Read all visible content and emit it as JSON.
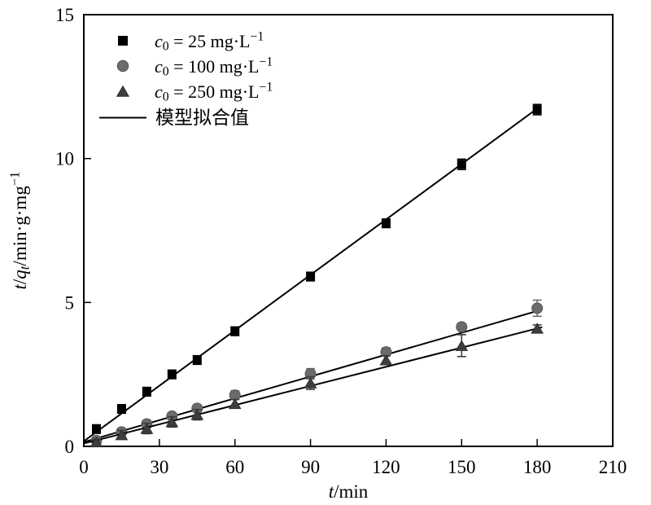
{
  "figure": {
    "background": "#ffffff",
    "frame_color": "#000000"
  },
  "chart_data": {
    "type": "scatter",
    "title": "",
    "xlabel": "t/min",
    "xlabel_parts": [
      {
        "t": "t",
        "style": "italic"
      },
      {
        "t": "/min",
        "style": "normal"
      }
    ],
    "ylabel": "t/qt/min·g·mg−1",
    "ylabel_parts": [
      {
        "t": "t",
        "style": "italic"
      },
      {
        "t": "/",
        "style": "normal"
      },
      {
        "t": "q",
        "style": "italic"
      },
      {
        "t": "t",
        "style": "italic-sub"
      },
      {
        "t": "/min·g·mg",
        "style": "normal"
      },
      {
        "t": "−1",
        "style": "sup"
      }
    ],
    "xlim": [
      0,
      210
    ],
    "ylim": [
      0,
      15
    ],
    "xticks": [
      0,
      30,
      60,
      90,
      120,
      150,
      180,
      210
    ],
    "yticks": [
      0,
      5,
      10,
      15
    ],
    "grid": false,
    "legend_position": "top-left",
    "x": [
      5,
      15,
      25,
      35,
      45,
      60,
      90,
      120,
      150,
      180
    ],
    "series": [
      {
        "name": "c0 = 25 mg·L−1",
        "label_parts": [
          {
            "t": "c",
            "style": "italic"
          },
          {
            "t": "0",
            "style": "sub"
          },
          {
            "t": " = 25 mg·L",
            "style": "normal"
          },
          {
            "t": "−1",
            "style": "sup"
          }
        ],
        "marker": "square",
        "color": "#000000",
        "values": [
          0.6,
          1.3,
          1.9,
          2.5,
          3.0,
          4.0,
          5.9,
          7.75,
          9.8,
          11.7
        ],
        "errors": [
          0.15,
          0.15,
          0.15,
          0.15,
          0.15,
          0.15,
          0.15,
          0.15,
          0.18,
          0.18
        ],
        "fit": {
          "slope": 0.0642,
          "intercept": 0.18,
          "t_start": 0,
          "t_end": 180.7
        }
      },
      {
        "name": "c0 = 100 mg·L−1",
        "label_parts": [
          {
            "t": "c",
            "style": "italic"
          },
          {
            "t": "0",
            "style": "sub"
          },
          {
            "t": " = 100 mg·L",
            "style": "normal"
          },
          {
            "t": "−1",
            "style": "sup"
          }
        ],
        "marker": "circle",
        "color": "#6b6b6b",
        "edge_color": "#555555",
        "values": [
          0.2,
          0.5,
          0.78,
          1.05,
          1.32,
          1.78,
          2.52,
          3.28,
          4.15,
          4.8
        ],
        "errors": [
          0.1,
          0.12,
          0.12,
          0.12,
          0.12,
          0.15,
          0.18,
          0.14,
          0.12,
          0.28
        ],
        "fit": {
          "slope": 0.0253,
          "intercept": 0.15,
          "t_start": 0,
          "t_end": 182
        }
      },
      {
        "name": "c0 = 250 mg·L−1",
        "label_parts": [
          {
            "t": "c",
            "style": "italic"
          },
          {
            "t": "0",
            "style": "sub"
          },
          {
            "t": " = 250 mg·L",
            "style": "normal"
          },
          {
            "t": "−1",
            "style": "sup"
          }
        ],
        "marker": "triangle",
        "color": "#3d3d3d",
        "edge_color": "#2e2e2e",
        "values": [
          0.15,
          0.4,
          0.62,
          0.85,
          1.1,
          1.48,
          2.2,
          3.0,
          3.5,
          4.1
        ],
        "errors": [
          0.1,
          0.15,
          0.18,
          0.18,
          0.18,
          0.15,
          0.22,
          0.15,
          0.38,
          0.12
        ],
        "fit": {
          "slope": 0.0222,
          "intercept": 0.1,
          "t_start": 0,
          "t_end": 182
        }
      }
    ],
    "fit_line": {
      "label": "模型拟合值",
      "color": "#000000",
      "width": 2
    }
  }
}
